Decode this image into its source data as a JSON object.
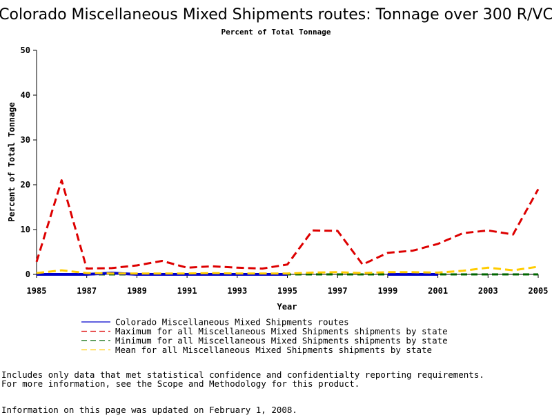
{
  "chart_data": {
    "type": "line",
    "title": "Colorado Miscellaneous Mixed Shipments routes: Tonnage over 300 R/VC",
    "subtitle": "Percent of Total Tonnage",
    "xlabel": "Year",
    "ylabel": "Percent of Total Tonnage",
    "xlim": [
      1985,
      2005
    ],
    "ylim": [
      0,
      50
    ],
    "x_ticks": [
      "1985",
      "1987",
      "1989",
      "1991",
      "1993",
      "1995",
      "1997",
      "1999",
      "2001",
      "2003",
      "2005"
    ],
    "y_ticks": [
      "0",
      "10",
      "20",
      "30",
      "40",
      "50"
    ],
    "x": [
      1985,
      1986,
      1987,
      1988,
      1989,
      1990,
      1991,
      1992,
      1993,
      1994,
      1995,
      1996,
      1997,
      1998,
      1999,
      2000,
      2001,
      2002,
      2003,
      2004,
      2005
    ],
    "series": [
      {
        "name": "Colorado Miscellaneous Mixed Shipments routes",
        "color": "#0000cc",
        "dash": "solid",
        "values": [
          0,
          0,
          0,
          0.3,
          0,
          0,
          0,
          0,
          0,
          0,
          0,
          null,
          null,
          null,
          0,
          0,
          0,
          null,
          null,
          null,
          null
        ]
      },
      {
        "name": "Maximum for all Miscellaneous Mixed Shipments shipments by state",
        "color": "#dd0000",
        "dash": "dashed",
        "values": [
          2.8,
          21,
          1.3,
          1.4,
          2,
          3,
          1.5,
          1.8,
          1.5,
          1.3,
          2.2,
          9.8,
          9.7,
          2.2,
          4.8,
          5.3,
          6.8,
          9.2,
          9.8,
          8.9,
          19
        ]
      },
      {
        "name": "Minimum for all Miscellaneous Mixed Shipments shipments by state",
        "color": "#006600",
        "dash": "dashed",
        "values": [
          0,
          0,
          0,
          0,
          0,
          0,
          0,
          0,
          0,
          0,
          0,
          0,
          0,
          0,
          0,
          0,
          0,
          0,
          0,
          0,
          0
        ]
      },
      {
        "name": "Mean for all Miscellaneous Mixed Shipments shipments by state",
        "color": "#ffcc00",
        "dash": "dashed",
        "values": [
          0.3,
          0.9,
          0.3,
          0.2,
          0.2,
          0.2,
          0.2,
          0.3,
          0.2,
          0.2,
          0.2,
          0.4,
          0.5,
          0.3,
          0.5,
          0.5,
          0.4,
          0.8,
          1.5,
          0.9,
          1.7
        ]
      }
    ],
    "legend_position": "bottom",
    "grid": false
  },
  "notes": {
    "line1": "Includes only data that met statistical confidence and confidentialty reporting requirements.",
    "line2": "For more information, see the Scope and Methodology for this product.",
    "updated": "Information on this page was updated on February 1, 2008."
  }
}
